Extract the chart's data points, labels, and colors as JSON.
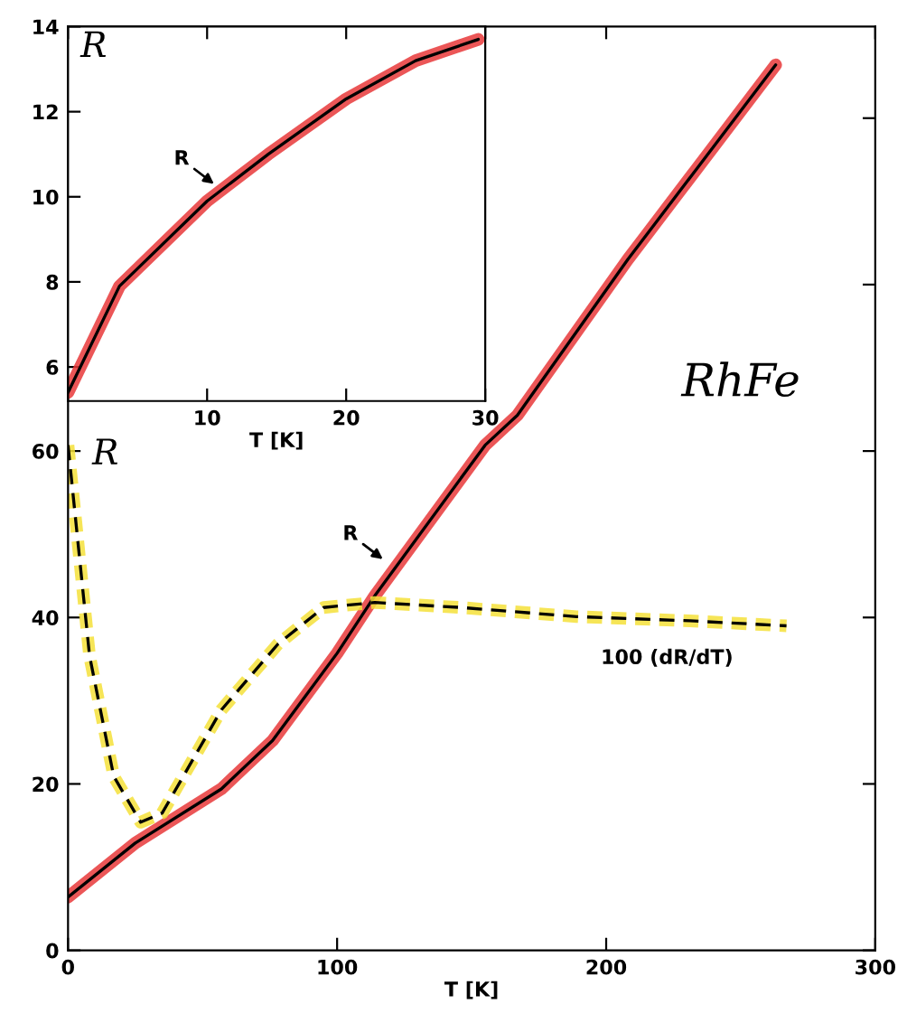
{
  "chart_data": [
    {
      "type": "line",
      "xlabel": "T [K]",
      "ylabel": "R",
      "xlim": [
        0,
        300
      ],
      "ylim": [
        0,
        111
      ],
      "xticks": [
        0,
        100,
        200,
        300
      ],
      "yticks": [
        0,
        20,
        40,
        60,
        {
          "value": 80,
          "label": null
        },
        {
          "value": 100,
          "label": null
        }
      ],
      "grid": false,
      "series": [
        {
          "color": "#e8383a",
          "line_style": "solid",
          "x": [
            0,
            25,
            57,
            76,
            100,
            114,
            155,
            167,
            208,
            263
          ],
          "values": [
            6.4,
            12.9,
            19.4,
            25.2,
            35.7,
            42.6,
            60.7,
            64.3,
            83,
            106.4
          ]
        },
        {
          "color": "#f5e13a",
          "line_style": "dashed",
          "x": [
            0,
            8,
            17,
            27,
            35,
            57,
            78,
            95,
            114,
            146,
            189,
            231,
            267
          ],
          "values": [
            60.7,
            35.4,
            20.9,
            15.4,
            16.5,
            28.9,
            36.8,
            41.2,
            41.8,
            41.2,
            40.1,
            39.6,
            39
          ]
        }
      ],
      "annotations": [
        {
          "text": "R",
          "x": 117,
          "y": 47
        },
        "100 (dR/dT)",
        "RhFe"
      ]
    },
    {
      "type": "line",
      "xlabel": "T [K]",
      "ylabel": "R",
      "xlim": [
        0,
        30
      ],
      "ylim": [
        5.2,
        14
      ],
      "xticks": [
        {
          "value": 0,
          "label": null
        },
        10,
        20,
        30
      ],
      "yticks": [
        6,
        8,
        10,
        12,
        14
      ],
      "grid": false,
      "series": [
        {
          "color": "#e8383a",
          "line_style": "solid",
          "x": [
            0,
            3.7,
            10,
            14.4,
            20,
            25,
            29.5
          ],
          "values": [
            5.4,
            7.9,
            9.9,
            11.0,
            12.3,
            13.2,
            13.7
          ]
        }
      ],
      "annotations": [
        {
          "text": "R",
          "x": 10.5,
          "y": 10.3
        }
      ]
    }
  ]
}
